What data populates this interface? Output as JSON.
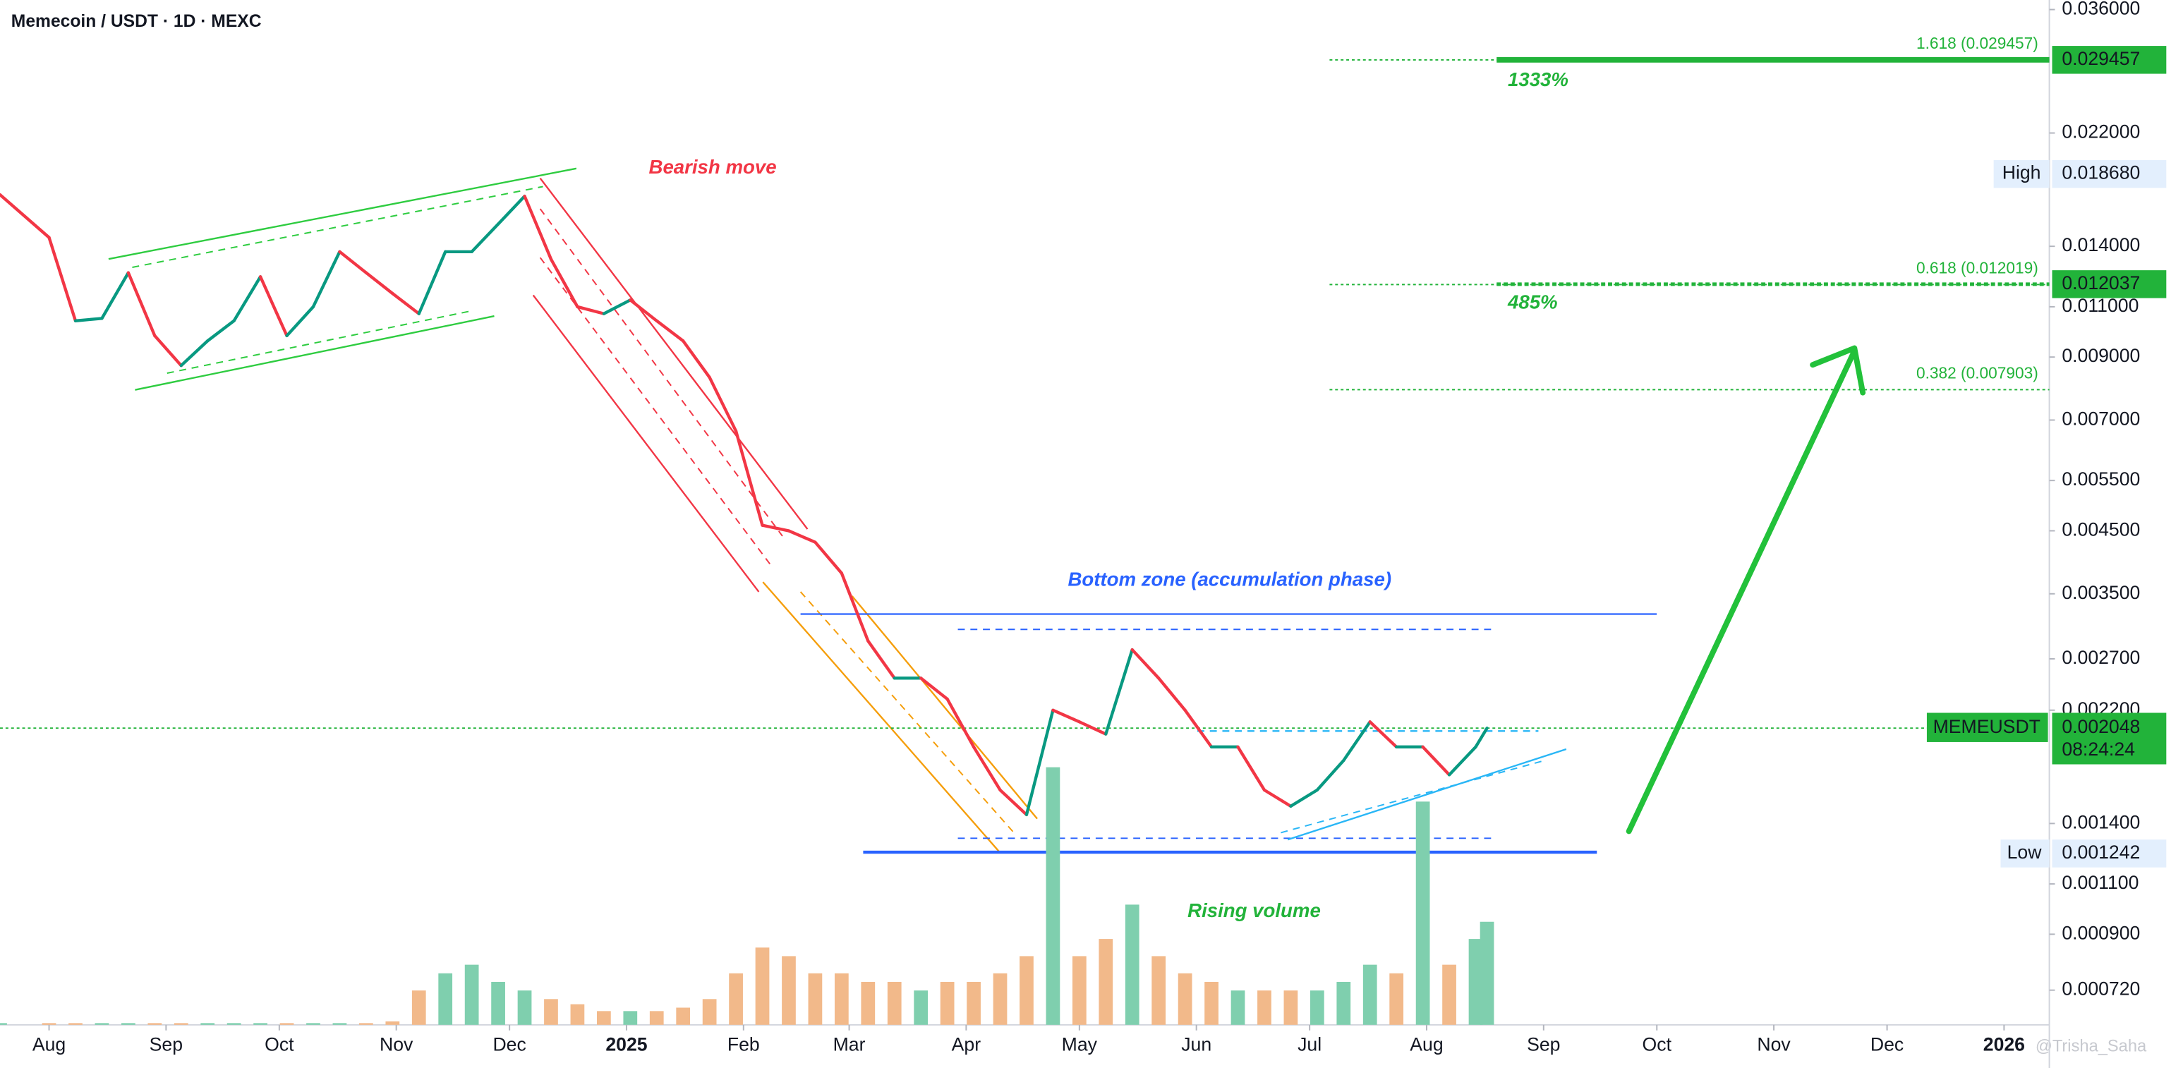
{
  "chart_data": {
    "type": "line",
    "title": "Memecoin / USDT · 1D · MEXC",
    "xlim": [
      "2024-07-19",
      "2026-01-13"
    ],
    "xticks": [
      {
        "value": "2024-08-01",
        "label": "Aug"
      },
      {
        "value": "2024-09-01",
        "label": "Sep"
      },
      {
        "value": "2024-10-01",
        "label": "Oct"
      },
      {
        "value": "2024-11-01",
        "label": "Nov"
      },
      {
        "value": "2024-12-01",
        "label": "Dec"
      },
      {
        "value": "2025-01-01",
        "label": "2025"
      },
      {
        "value": "2025-02-01",
        "label": "Feb"
      },
      {
        "value": "2025-03-01",
        "label": "Mar"
      },
      {
        "value": "2025-04-01",
        "label": "Apr"
      },
      {
        "value": "2025-05-01",
        "label": "May"
      },
      {
        "value": "2025-06-01",
        "label": "Jun"
      },
      {
        "value": "2025-07-01",
        "label": "Jul"
      },
      {
        "value": "2025-08-01",
        "label": "Aug"
      },
      {
        "value": "2025-09-01",
        "label": "Sep"
      },
      {
        "value": "2025-10-01",
        "label": "Oct"
      },
      {
        "value": "2025-11-01",
        "label": "Nov"
      },
      {
        "value": "2025-12-01",
        "label": "Dec"
      },
      {
        "value": "2026-01-01",
        "label": "2026"
      }
    ],
    "log_scale": true,
    "ylim": [
      0.000627,
      0.0374
    ],
    "yticks": [
      {
        "value": 0.036,
        "label": "0.036000"
      },
      {
        "value": 0.022,
        "label": "0.022000"
      },
      {
        "value": 0.014,
        "label": "0.014000"
      },
      {
        "value": 0.011,
        "label": "0.011000"
      },
      {
        "value": 0.009,
        "label": "0.009000"
      },
      {
        "value": 0.007,
        "label": "0.007000"
      },
      {
        "value": 0.0055,
        "label": "0.005500"
      },
      {
        "value": 0.0045,
        "label": "0.004500"
      },
      {
        "value": 0.0035,
        "label": "0.003500"
      },
      {
        "value": 0.0027,
        "label": "0.002700"
      },
      {
        "value": 0.0022,
        "label": "0.002200"
      },
      {
        "value": 0.0014,
        "label": "0.001400"
      },
      {
        "value": 0.0011,
        "label": "0.001100"
      },
      {
        "value": 0.0009,
        "label": "0.000900"
      },
      {
        "value": 0.00072,
        "label": "0.000720"
      }
    ],
    "x": [
      "2024-07-19",
      "2024-08-01",
      "2024-08-08",
      "2024-08-15",
      "2024-08-22",
      "2024-08-29",
      "2024-09-05",
      "2024-09-12",
      "2024-09-19",
      "2024-09-26",
      "2024-10-03",
      "2024-10-10",
      "2024-10-17",
      "2024-10-24",
      "2024-10-31",
      "2024-11-07",
      "2024-11-14",
      "2024-11-21",
      "2024-11-28",
      "2024-12-05",
      "2024-12-12",
      "2024-12-19",
      "2024-12-26",
      "2025-01-02",
      "2025-01-09",
      "2025-01-16",
      "2025-01-23",
      "2025-01-30",
      "2025-02-06",
      "2025-02-13",
      "2025-02-20",
      "2025-02-27",
      "2025-03-06",
      "2025-03-13",
      "2025-03-20",
      "2025-03-27",
      "2025-04-03",
      "2025-04-10",
      "2025-04-17",
      "2025-04-24",
      "2025-05-01",
      "2025-05-08",
      "2025-05-15",
      "2025-05-22",
      "2025-05-29",
      "2025-06-05",
      "2025-06-12",
      "2025-06-19",
      "2025-06-26",
      "2025-07-03",
      "2025-07-10",
      "2025-07-17",
      "2025-07-24",
      "2025-07-31",
      "2025-08-07",
      "2025-08-14",
      "2025-08-17"
    ],
    "series": [
      {
        "name": "MEMEUSDT",
        "up_color": "#089981",
        "down_color": "#f23645",
        "values": [
          0.0172,
          0.0145,
          0.0104,
          0.0105,
          0.0126,
          0.0098,
          0.0087,
          0.0096,
          0.0104,
          0.0124,
          0.0098,
          0.011,
          0.0137,
          0.0126,
          0.0116,
          0.0107,
          0.0137,
          0.0137,
          0.0153,
          0.0171,
          0.0133,
          0.011,
          0.0107,
          0.0113,
          0.0104,
          0.0096,
          0.0083,
          0.0067,
          0.0046,
          0.0045,
          0.0043,
          0.0038,
          0.0029,
          0.0025,
          0.0025,
          0.0023,
          0.0019,
          0.0016,
          0.00145,
          0.0022,
          0.0021,
          0.002,
          0.0028,
          0.0025,
          0.0022,
          0.0019,
          0.0019,
          0.0016,
          0.0015,
          0.0016,
          0.0018,
          0.0021,
          0.0019,
          0.0019,
          0.0017,
          0.0019,
          0.002048
        ]
      }
    ],
    "volume": {
      "up_color": "#7fcfae",
      "down_color": "#f2b98a",
      "values": [
        1,
        1,
        1,
        1,
        1,
        1,
        1,
        1,
        1,
        1,
        1,
        1,
        1,
        1,
        2,
        20,
        30,
        35,
        25,
        20,
        15,
        12,
        8,
        8,
        8,
        10,
        15,
        30,
        45,
        40,
        30,
        30,
        25,
        25,
        20,
        25,
        25,
        30,
        40,
        150,
        40,
        50,
        70,
        40,
        30,
        25,
        20,
        20,
        20,
        20,
        25,
        35,
        30,
        130,
        35,
        50,
        60
      ]
    },
    "countdown": "08:24:24",
    "line_color": "#22b33a",
    "fib_levels": [
      {
        "label": "1.618 (0.029457)",
        "value": 0.029457
      },
      {
        "label": "0.618 (0.012019)",
        "value": 0.012019
      },
      {
        "label": "0.382 (0.007903)",
        "value": 0.007903
      }
    ],
    "target_prices": [
      0.029457,
      0.012037
    ],
    "high_label": "High",
    "high": {
      "value": 0.01868,
      "label": "0.018680"
    },
    "low_label": "Low",
    "low": 0.001242,
    "annotations": [
      "Bearish move",
      "Bottom zone (accumulation phase)",
      "Rising volume",
      "1333%",
      "485%"
    ],
    "watermark": "@Trisha_Saha"
  }
}
